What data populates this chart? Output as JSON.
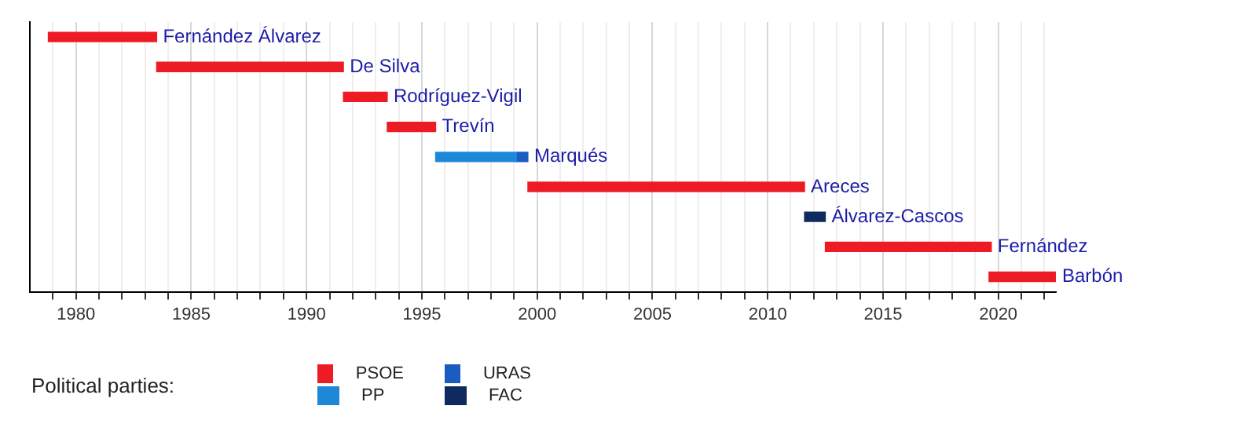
{
  "chart_data": {
    "type": "bar",
    "orientation": "horizontal",
    "categories": [
      "Fernández Álvarez",
      "De Silva",
      "Rodríguez-Vigil",
      "Trevín",
      "Marqués",
      "Areces",
      "Álvarez-Cascos",
      "Fernández",
      "Barbón"
    ],
    "series": [
      {
        "name": "PSOE",
        "color": "#ed1c24",
        "base": [
          1978.8,
          1983.5,
          1991.6,
          1993.5,
          null,
          1999.6,
          null,
          2012.5,
          2019.6
        ],
        "values": [
          4.7,
          8.1,
          1.9,
          2.1,
          null,
          12.0,
          null,
          7.2,
          2.9
        ]
      },
      {
        "name": "PP",
        "color": "#1e88d8",
        "base": [
          null,
          null,
          null,
          null,
          1995.6,
          null,
          null,
          null,
          null
        ],
        "values": [
          null,
          null,
          null,
          null,
          3.5,
          null,
          null,
          null,
          null
        ]
      },
      {
        "name": "URAS",
        "color": "#1a5cc0",
        "base": [
          null,
          null,
          null,
          null,
          1999.1,
          null,
          null,
          null,
          null
        ],
        "values": [
          null,
          null,
          null,
          null,
          0.5,
          null,
          null,
          null,
          null
        ]
      },
      {
        "name": "FAC",
        "color": "#0f2a5e",
        "base": [
          null,
          null,
          null,
          null,
          null,
          null,
          2011.6,
          null,
          null
        ],
        "values": [
          null,
          null,
          null,
          null,
          null,
          null,
          0.9,
          null,
          null
        ]
      }
    ],
    "xlim": [
      1978,
      2022.5
    ],
    "xticks": [
      {
        "value": 1979,
        "label": null
      },
      1980,
      {
        "value": 1981,
        "label": null
      },
      {
        "value": 1982,
        "label": null
      },
      {
        "value": 1983,
        "label": null
      },
      {
        "value": 1984,
        "label": null
      },
      1985,
      {
        "value": 1986,
        "label": null
      },
      {
        "value": 1987,
        "label": null
      },
      {
        "value": 1988,
        "label": null
      },
      {
        "value": 1989,
        "label": null
      },
      1990,
      {
        "value": 1991,
        "label": null
      },
      {
        "value": 1992,
        "label": null
      },
      {
        "value": 1993,
        "label": null
      },
      {
        "value": 1994,
        "label": null
      },
      1995,
      {
        "value": 1996,
        "label": null
      },
      {
        "value": 1997,
        "label": null
      },
      {
        "value": 1998,
        "label": null
      },
      {
        "value": 1999,
        "label": null
      },
      2000,
      {
        "value": 2001,
        "label": null
      },
      {
        "value": 2002,
        "label": null
      },
      {
        "value": 2003,
        "label": null
      },
      {
        "value": 2004,
        "label": null
      },
      2005,
      {
        "value": 2006,
        "label": null
      },
      {
        "value": 2007,
        "label": null
      },
      {
        "value": 2008,
        "label": null
      },
      {
        "value": 2009,
        "label": null
      },
      2010,
      {
        "value": 2011,
        "label": null
      },
      {
        "value": 2012,
        "label": null
      },
      {
        "value": 2013,
        "label": null
      },
      {
        "value": 2014,
        "label": null
      },
      2015,
      {
        "value": 2016,
        "label": null
      },
      {
        "value": 2017,
        "label": null
      },
      {
        "value": 2018,
        "label": null
      },
      {
        "value": 2019,
        "label": null
      },
      2020,
      {
        "value": 2021,
        "label": null
      },
      {
        "value": 2022,
        "label": null
      }
    ],
    "grid": "x",
    "tick_labels": "x",
    "legend": "bottom",
    "legend_title": "Political parties:"
  }
}
